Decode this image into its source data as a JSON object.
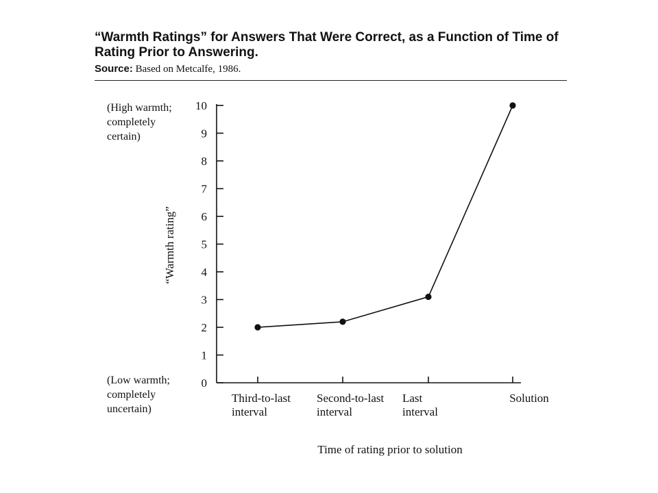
{
  "header": {
    "title": "“Warmth Ratings” for Answers That Were Correct, as a Function of Time of Rating Prior to Answering.",
    "source_label": "Source:",
    "source_text": " Based on Metcalfe, 1986."
  },
  "annotations": {
    "high": "(High warmth;\n completely\n certain)",
    "low": "(Low warmth;\n completely\n uncertain)"
  },
  "chart_data": {
    "type": "line",
    "title": "“Warmth Ratings” for Answers That Were Correct, as a Function of Time of Rating Prior to Answering.",
    "xlabel": "Time of rating prior to solution",
    "ylabel": "“Warmth rating”",
    "categories": [
      [
        "Third-to-last",
        "interval"
      ],
      [
        "Second-to-last",
        "interval"
      ],
      [
        "Last",
        "interval"
      ],
      [
        "Solution"
      ]
    ],
    "values": [
      2.0,
      2.2,
      3.1,
      10.0
    ],
    "yticks": [
      0,
      1,
      2,
      3,
      4,
      5,
      6,
      7,
      8,
      9,
      10
    ],
    "ylim": [
      0,
      10
    ],
    "grid": false,
    "color": "#111111"
  }
}
